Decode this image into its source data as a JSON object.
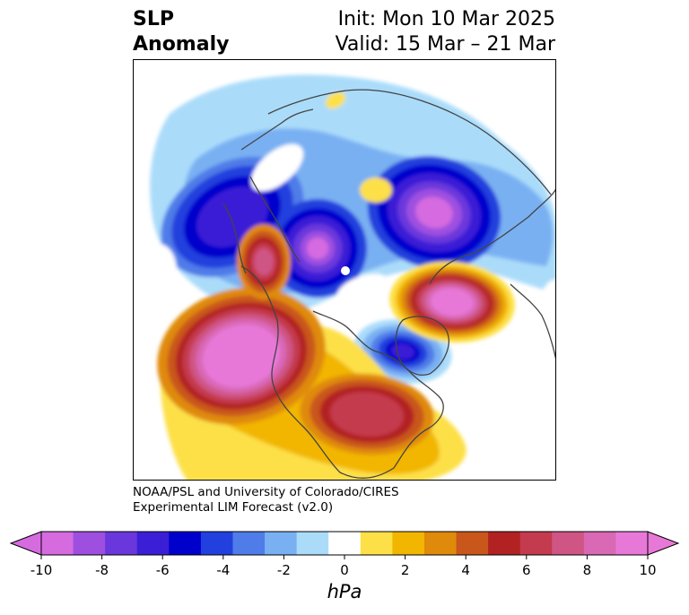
{
  "title": {
    "left_line1": "SLP",
    "left_line2": "Anomaly",
    "right_line1": "Init: Mon 10 Mar 2025",
    "right_line2": "Valid: 15 Mar – 21 Mar"
  },
  "credit": {
    "line1": "NOAA/PSL and University of Colorado/CIRES",
    "line2": "Experimental LIM Forecast (v2.0)"
  },
  "colorbar": {
    "units": "hPa",
    "ticks": [
      "-10",
      "-8",
      "-6",
      "-4",
      "-2",
      "0",
      "2",
      "4",
      "6",
      "8",
      "10"
    ],
    "tick_values": [
      -10,
      -8,
      -6,
      -4,
      -2,
      0,
      2,
      4,
      6,
      8,
      10
    ],
    "boundaries": [
      -10,
      -9,
      -8,
      -7,
      -6,
      -5,
      -4,
      -3,
      -2,
      -1,
      1,
      2,
      3,
      4,
      5,
      6,
      7,
      8,
      9,
      10
    ],
    "colors": [
      "#d66be0",
      "#9e4fe0",
      "#6a37dc",
      "#3a1fd6",
      "#0000cc",
      "#2240dd",
      "#4f7ce8",
      "#79b0f2",
      "#aadcfa",
      "#ffffff",
      "#fde047",
      "#f2b600",
      "#df8a0a",
      "#c9561a",
      "#b22222",
      "#c43a4e",
      "#cf5585",
      "#d968b5",
      "#e878d8"
    ],
    "extend_low_color": "#d66be0",
    "extend_high_color": "#e878d8"
  },
  "map": {
    "projection": "north-polar-stereographic",
    "field": "sea level pressure anomaly",
    "anomalies": [
      {
        "name": "low-north-pacific-aleutian",
        "min_hpa": -10
      },
      {
        "name": "low-western-atlantic-europe",
        "min_hpa": -10
      },
      {
        "name": "low-greenland-arctic-west",
        "min_hpa": -7
      },
      {
        "name": "low-southern-greenland",
        "min_hpa": -8
      },
      {
        "name": "high-east-siberia",
        "max_hpa": 8
      },
      {
        "name": "high-northeast-pacific",
        "max_hpa": 10
      },
      {
        "name": "high-north-atlantic-scandinavia",
        "max_hpa": 10
      },
      {
        "name": "high-eastern-north-america",
        "max_hpa": 7
      },
      {
        "name": "high-central-canada",
        "max_hpa": 6
      },
      {
        "name": "high-western-siberia-small",
        "max_hpa": 2
      }
    ]
  }
}
